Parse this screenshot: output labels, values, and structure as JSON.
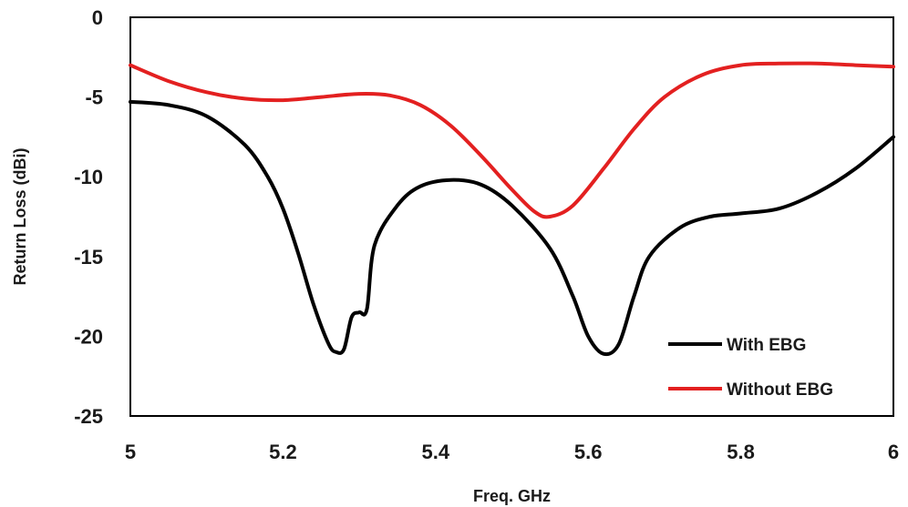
{
  "chart_data": {
    "type": "line",
    "xlabel": "Freq. GHz",
    "ylabel": "Return Loss (dBi)",
    "xlim": [
      5,
      6
    ],
    "ylim": [
      -25,
      0
    ],
    "xticks": [
      "5",
      "5.2",
      "5.4",
      "5.6",
      "5.8",
      "6"
    ],
    "yticks": [
      "0",
      "-5",
      "-10",
      "-15",
      "-20",
      "-25"
    ],
    "grid": false,
    "legend_position": "bottom-right",
    "series": [
      {
        "name": "With EBG",
        "color": "#000000",
        "points": [
          [
            5.0,
            -5.3
          ],
          [
            5.05,
            -5.5
          ],
          [
            5.1,
            -6.2
          ],
          [
            5.15,
            -8.0
          ],
          [
            5.18,
            -10.0
          ],
          [
            5.2,
            -12.0
          ],
          [
            5.22,
            -14.8
          ],
          [
            5.24,
            -18.0
          ],
          [
            5.26,
            -20.5
          ],
          [
            5.27,
            -21.0
          ],
          [
            5.28,
            -20.8
          ],
          [
            5.29,
            -18.8
          ],
          [
            5.3,
            -18.5
          ],
          [
            5.31,
            -18.3
          ],
          [
            5.32,
            -14.3
          ],
          [
            5.35,
            -11.8
          ],
          [
            5.38,
            -10.6
          ],
          [
            5.42,
            -10.2
          ],
          [
            5.46,
            -10.5
          ],
          [
            5.5,
            -11.8
          ],
          [
            5.55,
            -14.5
          ],
          [
            5.58,
            -17.5
          ],
          [
            5.6,
            -20.0
          ],
          [
            5.62,
            -21.1
          ],
          [
            5.64,
            -20.5
          ],
          [
            5.66,
            -17.5
          ],
          [
            5.68,
            -15.0
          ],
          [
            5.72,
            -13.2
          ],
          [
            5.76,
            -12.5
          ],
          [
            5.8,
            -12.3
          ],
          [
            5.85,
            -12.0
          ],
          [
            5.9,
            -11.0
          ],
          [
            5.95,
            -9.5
          ],
          [
            6.0,
            -7.5
          ]
        ]
      },
      {
        "name": "Without EBG",
        "color": "#e32020",
        "points": [
          [
            5.0,
            -3.0
          ],
          [
            5.05,
            -4.0
          ],
          [
            5.1,
            -4.7
          ],
          [
            5.15,
            -5.1
          ],
          [
            5.2,
            -5.2
          ],
          [
            5.25,
            -5.0
          ],
          [
            5.3,
            -4.8
          ],
          [
            5.34,
            -4.9
          ],
          [
            5.38,
            -5.5
          ],
          [
            5.42,
            -6.8
          ],
          [
            5.46,
            -8.7
          ],
          [
            5.5,
            -10.8
          ],
          [
            5.53,
            -12.2
          ],
          [
            5.55,
            -12.5
          ],
          [
            5.58,
            -11.8
          ],
          [
            5.62,
            -9.5
          ],
          [
            5.66,
            -7.0
          ],
          [
            5.7,
            -5.0
          ],
          [
            5.75,
            -3.6
          ],
          [
            5.8,
            -3.0
          ],
          [
            5.85,
            -2.9
          ],
          [
            5.9,
            -2.9
          ],
          [
            5.95,
            -3.0
          ],
          [
            6.0,
            -3.1
          ]
        ]
      }
    ]
  }
}
